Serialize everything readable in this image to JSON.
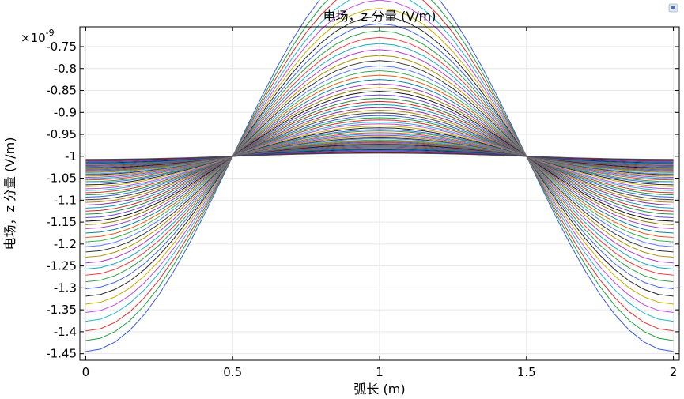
{
  "chart_data": {
    "type": "line",
    "title": "电场，z 分量 (V/m)",
    "xlabel": "弧长 (m)",
    "ylabel": "电场，z 分量 (V/m)",
    "y_exponent_label": "×10",
    "y_exponent_power": "-9",
    "xlim": [
      -0.02,
      2.02
    ],
    "ylim": [
      -1.465,
      -0.705
    ],
    "x_ticks": [
      0,
      0.5,
      1,
      1.5,
      2
    ],
    "x_tick_labels": [
      "0",
      "0.5",
      "1",
      "1.5",
      "2"
    ],
    "y_ticks": [
      -0.75,
      -0.8,
      -0.85,
      -0.9,
      -0.95,
      -1,
      -1.05,
      -1.1,
      -1.15,
      -1.2,
      -1.25,
      -1.3,
      -1.35,
      -1.4,
      -1.45
    ],
    "y_tick_labels": [
      "-0.75",
      "-0.8",
      "-0.85",
      "-0.9",
      "-0.95",
      "-1",
      "-1.05",
      "-1.1",
      "-1.15",
      "-1.2",
      "-1.25",
      "-1.3",
      "-1.35",
      "-1.4",
      "-1.45"
    ],
    "grid": true,
    "series_count": 60,
    "series_description": "Each curve follows y = -1 - A*cos(pi*x) (units 1e-9 V/m) over x in [0,2]; amplitude A decreases from about 0.445 down to about 0.007 across the curves",
    "amplitudes": [
      0.445,
      0.42,
      0.398,
      0.376,
      0.356,
      0.337,
      0.319,
      0.302,
      0.286,
      0.271,
      0.257,
      0.243,
      0.23,
      0.218,
      0.206,
      0.195,
      0.185,
      0.175,
      0.165,
      0.156,
      0.148,
      0.14,
      0.132,
      0.125,
      0.118,
      0.111,
      0.105,
      0.099,
      0.093,
      0.088,
      0.083,
      0.078,
      0.074,
      0.069,
      0.065,
      0.061,
      0.058,
      0.054,
      0.051,
      0.048,
      0.045,
      0.042,
      0.04,
      0.037,
      0.035,
      0.033,
      0.031,
      0.029,
      0.027,
      0.025,
      0.023,
      0.021,
      0.019,
      0.017,
      0.015,
      0.013,
      0.011,
      0.01,
      0.008,
      0.007
    ],
    "colors": [
      "#3b5bdb",
      "#1f9f3f",
      "#e03131",
      "#22b8cf",
      "#be4bdb",
      "#c5b000",
      "#222222",
      "#4263eb",
      "#2f9e44",
      "#f03e3e",
      "#15aabf",
      "#ae3ec9",
      "#a89200",
      "#333333",
      "#5c7cfa",
      "#37b24d",
      "#e8590c",
      "#0c8599",
      "#9c36b5",
      "#8f7b00",
      "#111111",
      "#6741d9",
      "#2b8a3e",
      "#c92a2a",
      "#1098ad",
      "#862e9c",
      "#b08900",
      "#444444"
    ],
    "colors_last": [
      "#1c7ed6",
      "#0b7285",
      "#2b2b2b",
      "#364fc7",
      "#5f3dc4",
      "#a61e4d",
      "#1e1e1e",
      "#495057"
    ]
  }
}
